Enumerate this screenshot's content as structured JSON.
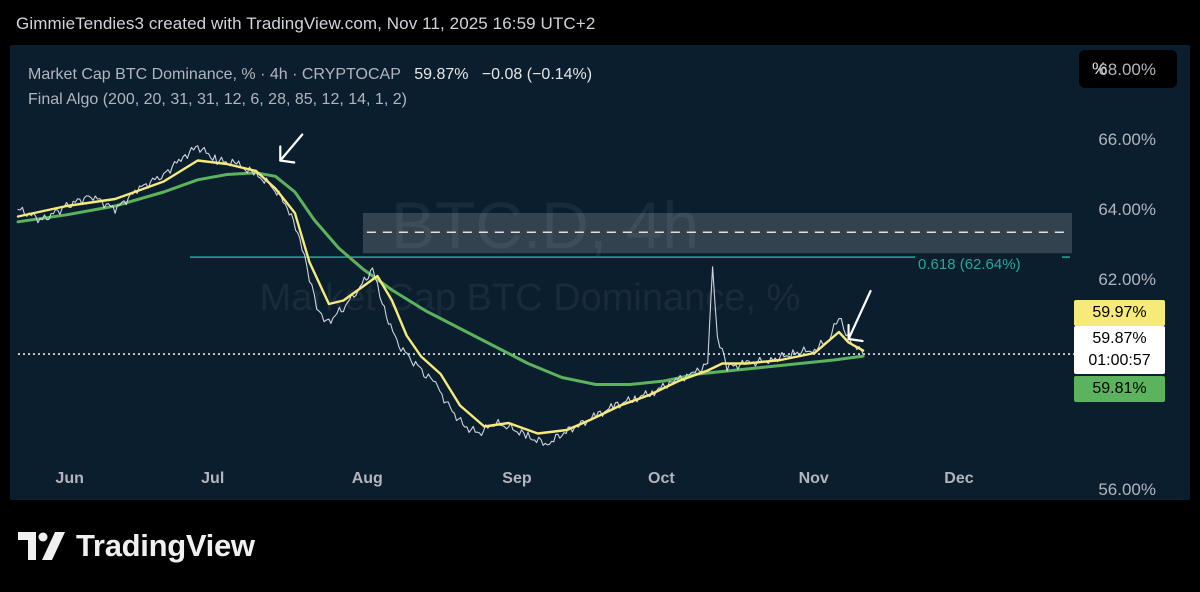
{
  "header": {
    "attribution": "GimmieTendies3 created with TradingView.com, Nov 11, 2025 16:59 UTC+2"
  },
  "legend": {
    "symbol_line": "Market Cap BTC Dominance, % · 4h · CRYPTOCAP",
    "last_value": "59.87%",
    "change": "−0.08 (−0.14%)",
    "indicator": "Final Algo (200, 20, 31, 31, 12, 6, 28, 85, 12, 14, 1, 2)"
  },
  "toolbar": {
    "unit_label": "%"
  },
  "watermark": {
    "line1": "BTC.D, 4h",
    "line2": "Market Cap BTC Dominance, %"
  },
  "price_badges": {
    "fast_line": "59.97%",
    "last_price": "59.87%",
    "countdown": "01:00:57",
    "slow_line": "59.81%"
  },
  "fib": {
    "label": "0.618 (62.64%)",
    "level": 62.64
  },
  "brand": {
    "name": "TradingView"
  },
  "colors": {
    "panel_bg": "#0b1e2e",
    "price_line": "#d8dde6",
    "fast_ma": "#f6ea7b",
    "slow_ma": "#5bb35e",
    "fib_line": "#26a69a"
  },
  "chart_data": {
    "type": "line",
    "title": "",
    "x_tick_labels": [
      "Jun",
      "Jul",
      "Aug",
      "Sep",
      "Oct",
      "Nov",
      "Dec"
    ],
    "y_tick_labels": [
      "68.00%",
      "66.00%",
      "64.00%",
      "62.00%",
      "56.00%"
    ],
    "y_ticks": [
      68,
      66,
      64,
      62,
      56
    ],
    "ylim": [
      55.7,
      68.7
    ],
    "xlim": [
      "2025-05-21",
      "2025-12-24"
    ],
    "log_scale": false,
    "grid": false,
    "zone": {
      "from": 62.75,
      "to": 63.9,
      "x_start": "2025-07-31",
      "x_end": "2025-12-24",
      "mid_dashed": 63.35
    },
    "current_price": 59.87,
    "series": [
      {
        "name": "",
        "role": "price",
        "x": [
          "2025-05-21",
          "2025-05-26",
          "2025-05-31",
          "2025-06-05",
          "2025-06-10",
          "2025-06-15",
          "2025-06-20",
          "2025-06-24",
          "2025-06-27",
          "2025-07-01",
          "2025-07-05",
          "2025-07-09",
          "2025-07-12",
          "2025-07-15",
          "2025-07-18",
          "2025-07-20",
          "2025-07-22",
          "2025-07-24",
          "2025-07-27",
          "2025-07-30",
          "2025-08-02",
          "2025-08-04",
          "2025-08-07",
          "2025-08-10",
          "2025-08-13",
          "2025-08-15",
          "2025-08-18",
          "2025-08-21",
          "2025-08-24",
          "2025-08-27",
          "2025-08-30",
          "2025-09-03",
          "2025-09-07",
          "2025-09-10",
          "2025-09-13",
          "2025-09-17",
          "2025-09-21",
          "2025-09-25",
          "2025-09-29",
          "2025-10-03",
          "2025-10-07",
          "2025-10-10",
          "2025-10-11",
          "2025-10-12",
          "2025-10-14",
          "2025-10-18",
          "2025-10-23",
          "2025-10-28",
          "2025-11-01",
          "2025-11-04",
          "2025-11-06",
          "2025-11-08",
          "2025-11-11"
        ],
        "y": [
          64.0,
          63.7,
          64.1,
          64.4,
          64.0,
          64.6,
          65.0,
          65.5,
          65.8,
          65.4,
          65.3,
          65.0,
          64.7,
          64.2,
          63.2,
          62.0,
          61.0,
          60.8,
          61.2,
          61.7,
          62.3,
          61.3,
          60.2,
          59.7,
          59.3,
          59.0,
          58.3,
          57.8,
          57.6,
          57.9,
          57.8,
          57.5,
          57.3,
          57.6,
          57.8,
          58.1,
          58.4,
          58.6,
          58.8,
          59.1,
          59.3,
          59.6,
          62.3,
          60.4,
          59.5,
          59.6,
          59.7,
          59.9,
          60.0,
          60.3,
          60.9,
          60.3,
          59.87
        ]
      },
      {
        "name": "",
        "role": "fast_ma",
        "x": [
          "2025-05-21",
          "2025-05-31",
          "2025-06-10",
          "2025-06-20",
          "2025-06-27",
          "2025-07-03",
          "2025-07-09",
          "2025-07-13",
          "2025-07-17",
          "2025-07-20",
          "2025-07-24",
          "2025-07-27",
          "2025-07-31",
          "2025-08-03",
          "2025-08-06",
          "2025-08-09",
          "2025-08-12",
          "2025-08-16",
          "2025-08-20",
          "2025-08-25",
          "2025-08-30",
          "2025-09-05",
          "2025-09-11",
          "2025-09-16",
          "2025-09-22",
          "2025-09-28",
          "2025-10-04",
          "2025-10-10",
          "2025-10-13",
          "2025-10-18",
          "2025-10-25",
          "2025-11-01",
          "2025-11-06",
          "2025-11-08",
          "2025-11-11"
        ],
        "y": [
          63.8,
          64.1,
          64.3,
          64.8,
          65.4,
          65.3,
          65.1,
          64.6,
          63.9,
          62.5,
          61.3,
          61.4,
          61.8,
          62.1,
          61.4,
          60.4,
          59.8,
          59.3,
          58.4,
          57.8,
          57.9,
          57.6,
          57.7,
          58.0,
          58.4,
          58.7,
          59.1,
          59.4,
          59.6,
          59.6,
          59.7,
          59.9,
          60.5,
          60.2,
          59.97
        ]
      },
      {
        "name": "",
        "role": "slow_ma",
        "x": [
          "2025-05-21",
          "2025-05-31",
          "2025-06-10",
          "2025-06-20",
          "2025-06-27",
          "2025-07-03",
          "2025-07-09",
          "2025-07-13",
          "2025-07-17",
          "2025-07-21",
          "2025-07-26",
          "2025-07-31",
          "2025-08-06",
          "2025-08-13",
          "2025-08-20",
          "2025-08-27",
          "2025-09-03",
          "2025-09-10",
          "2025-09-17",
          "2025-09-24",
          "2025-10-01",
          "2025-10-08",
          "2025-10-15",
          "2025-10-22",
          "2025-10-29",
          "2025-11-05",
          "2025-11-11"
        ],
        "y": [
          63.65,
          63.85,
          64.1,
          64.5,
          64.85,
          65.0,
          65.05,
          64.95,
          64.5,
          63.7,
          62.9,
          62.3,
          61.7,
          61.1,
          60.6,
          60.1,
          59.6,
          59.2,
          59.0,
          59.0,
          59.1,
          59.3,
          59.4,
          59.5,
          59.6,
          59.7,
          59.81
        ]
      }
    ],
    "annotations": [
      {
        "type": "arrow",
        "x": "2025-07-14",
        "y": 65.4
      },
      {
        "type": "arrow",
        "x": "2025-11-08",
        "y": 60.3
      }
    ]
  }
}
